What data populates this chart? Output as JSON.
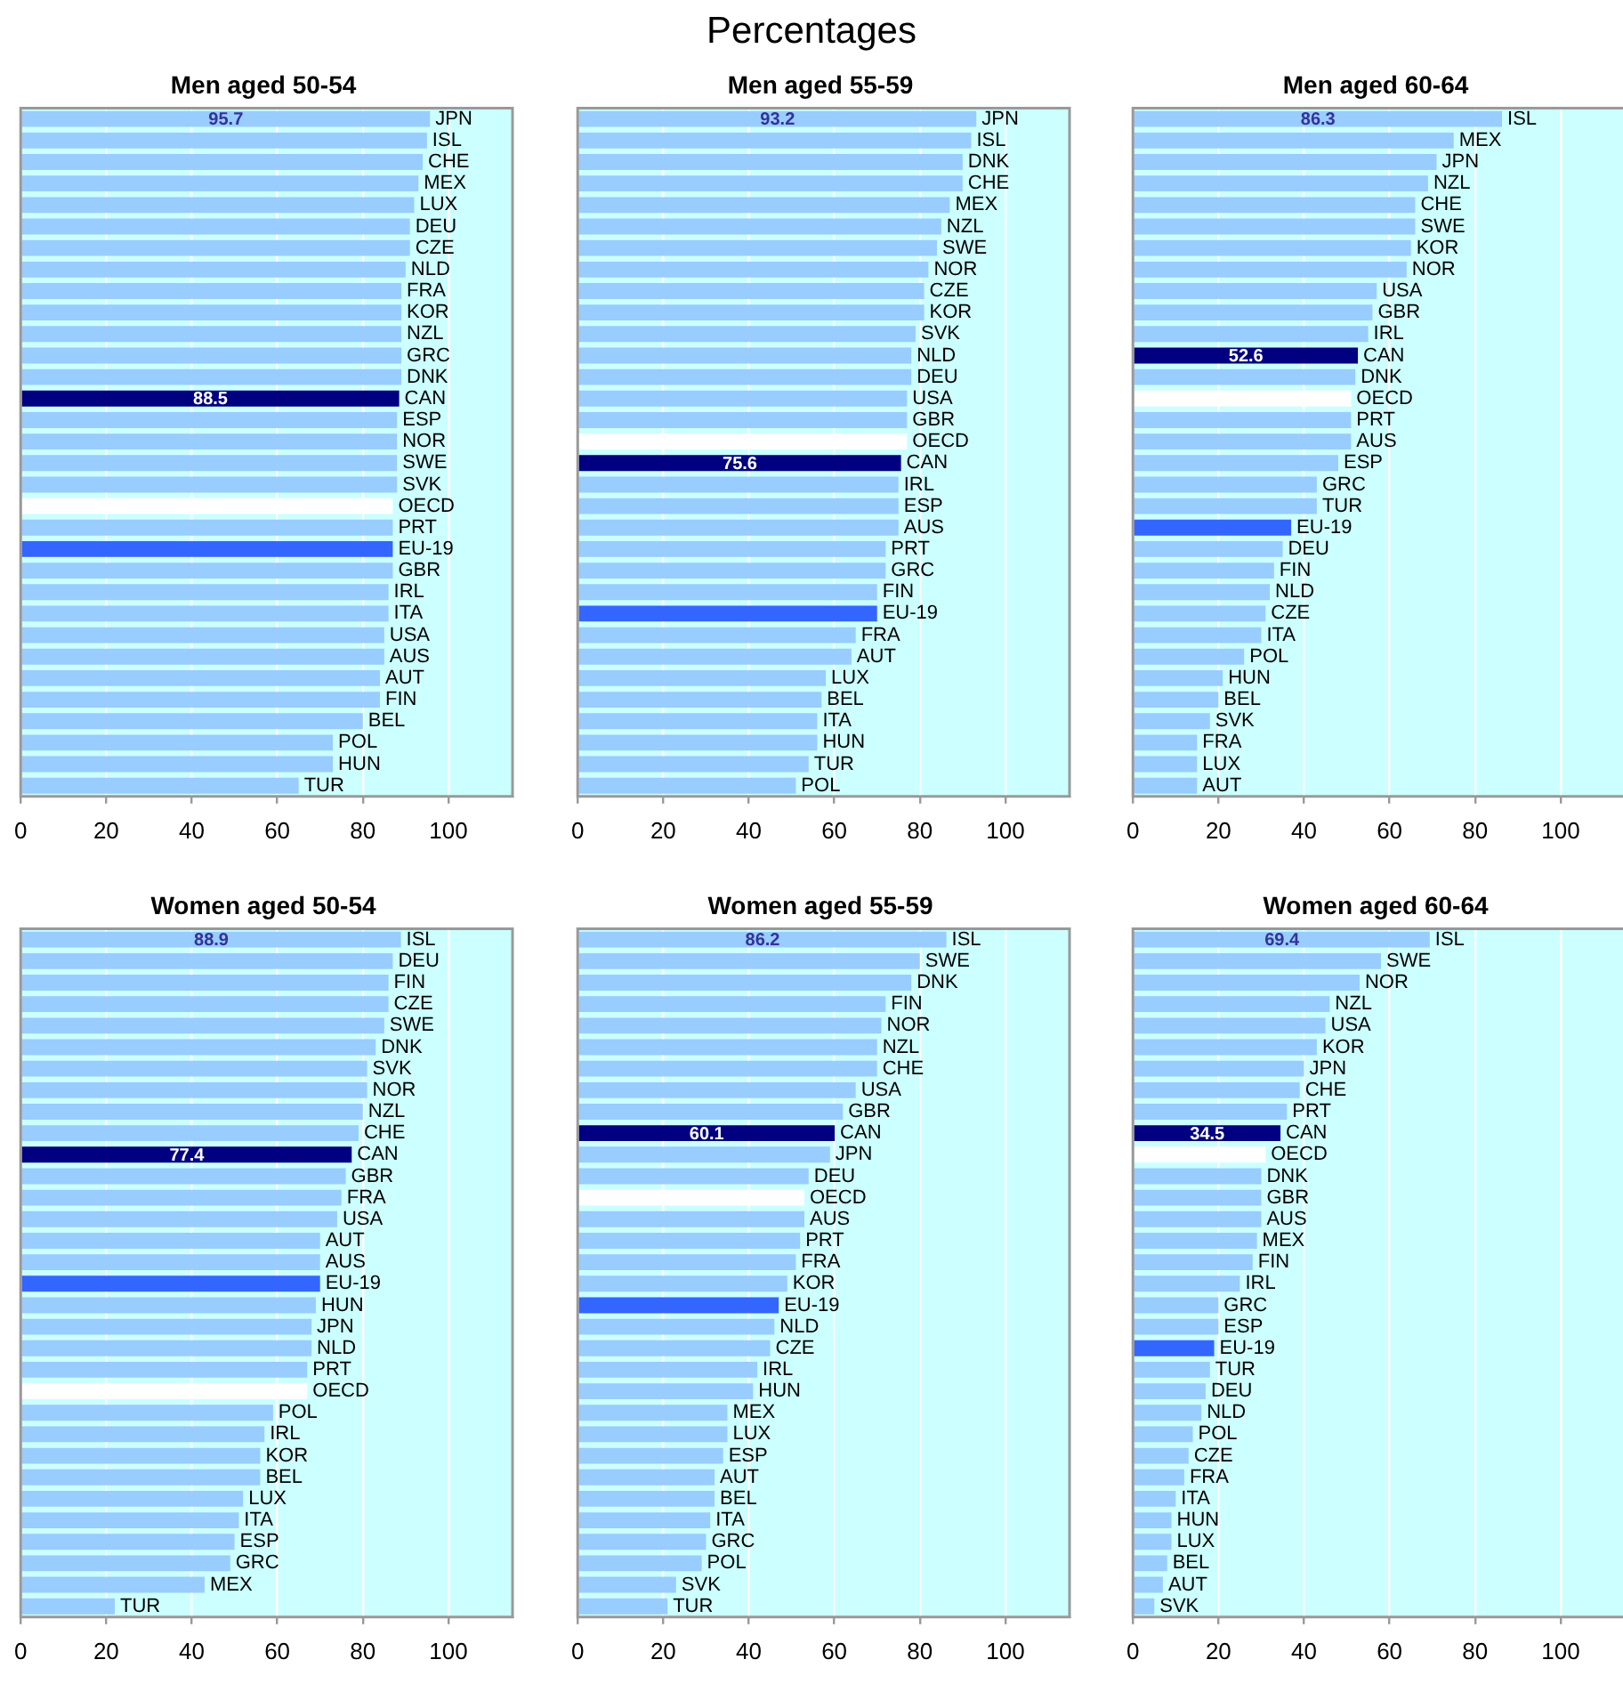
{
  "chart_data": [
    {
      "type": "bar",
      "orientation": "horizontal",
      "title": "Men aged 50-54",
      "bands": [
        {
          "axis": "x",
          "from": 0,
          "to": 115,
          "color": "#ccffff"
        }
      ],
      "annotations": [
        "Percentages"
      ],
      "grid": "x",
      "xlim": [
        0,
        115
      ],
      "xticks": [
        0,
        20,
        40,
        60,
        80,
        100
      ],
      "categories": [
        "JPN",
        "ISL",
        "CHE",
        "MEX",
        "LUX",
        "DEU",
        "CZE",
        "NLD",
        "FRA",
        "KOR",
        "NZL",
        "GRC",
        "DNK",
        "CAN",
        "ESP",
        "NOR",
        "SWE",
        "SVK",
        "OECD",
        "PRT",
        "EU-19",
        "GBR",
        "IRL",
        "ITA",
        "USA",
        "AUS",
        "AUT",
        "FIN",
        "BEL",
        "POL",
        "HUN",
        "TUR"
      ],
      "values": [
        95.7,
        95,
        94,
        93,
        92,
        91,
        91,
        90,
        89,
        89,
        89,
        89,
        89,
        88.5,
        88,
        88,
        88,
        88,
        87,
        87,
        87,
        87,
        86,
        86,
        85,
        85,
        84,
        84,
        80,
        73,
        73,
        65
      ],
      "colors": [
        "#99ccff",
        "#99ccff",
        "#99ccff",
        "#99ccff",
        "#99ccff",
        "#99ccff",
        "#99ccff",
        "#99ccff",
        "#99ccff",
        "#99ccff",
        "#99ccff",
        "#99ccff",
        "#99ccff",
        "#000080",
        "#99ccff",
        "#99ccff",
        "#99ccff",
        "#99ccff",
        "#ffffff",
        "#99ccff",
        "#3366ff",
        "#99ccff",
        "#99ccff",
        "#99ccff",
        "#99ccff",
        "#99ccff",
        "#99ccff",
        "#99ccff",
        "#99ccff",
        "#99ccff",
        "#99ccff",
        "#99ccff"
      ],
      "value_labels": [
        "95.7",
        null,
        null,
        null,
        null,
        null,
        null,
        null,
        null,
        null,
        null,
        null,
        null,
        "88.5",
        null,
        null,
        null,
        null,
        null,
        null,
        null,
        null,
        null,
        null,
        null,
        null,
        null,
        null,
        null,
        null,
        null,
        null
      ]
    },
    {
      "type": "bar",
      "orientation": "horizontal",
      "title": "Men aged 55-59",
      "bands": [
        {
          "axis": "x",
          "from": 0,
          "to": 115,
          "color": "#ccffff"
        }
      ],
      "grid": "x",
      "xlim": [
        0,
        115
      ],
      "xticks": [
        0,
        20,
        40,
        60,
        80,
        100
      ],
      "categories": [
        "JPN",
        "ISL",
        "DNK",
        "CHE",
        "MEX",
        "NZL",
        "SWE",
        "NOR",
        "CZE",
        "KOR",
        "SVK",
        "NLD",
        "DEU",
        "USA",
        "GBR",
        "OECD",
        "CAN",
        "IRL",
        "ESP",
        "AUS",
        "PRT",
        "GRC",
        "FIN",
        "EU-19",
        "FRA",
        "AUT",
        "LUX",
        "BEL",
        "ITA",
        "HUN",
        "TUR",
        "POL"
      ],
      "values": [
        93.2,
        92,
        90,
        90,
        87,
        85,
        84,
        82,
        81,
        81,
        79,
        78,
        78,
        77,
        77,
        77,
        75.6,
        75,
        75,
        75,
        72,
        72,
        70,
        70,
        65,
        64,
        58,
        57,
        56,
        56,
        54,
        51
      ],
      "colors": [
        "#99ccff",
        "#99ccff",
        "#99ccff",
        "#99ccff",
        "#99ccff",
        "#99ccff",
        "#99ccff",
        "#99ccff",
        "#99ccff",
        "#99ccff",
        "#99ccff",
        "#99ccff",
        "#99ccff",
        "#99ccff",
        "#99ccff",
        "#ffffff",
        "#000080",
        "#99ccff",
        "#99ccff",
        "#99ccff",
        "#99ccff",
        "#99ccff",
        "#99ccff",
        "#3366ff",
        "#99ccff",
        "#99ccff",
        "#99ccff",
        "#99ccff",
        "#99ccff",
        "#99ccff",
        "#99ccff",
        "#99ccff"
      ],
      "value_labels": [
        "93.2",
        null,
        null,
        null,
        null,
        null,
        null,
        null,
        null,
        null,
        null,
        null,
        null,
        null,
        null,
        null,
        "75.6",
        null,
        null,
        null,
        null,
        null,
        null,
        null,
        null,
        null,
        null,
        null,
        null,
        null,
        null,
        null
      ]
    },
    {
      "type": "bar",
      "orientation": "horizontal",
      "title": "Men aged 60-64",
      "bands": [
        {
          "axis": "x",
          "from": 0,
          "to": 115,
          "color": "#ccffff"
        }
      ],
      "grid": "x",
      "xlim": [
        0,
        115
      ],
      "xticks": [
        0,
        20,
        40,
        60,
        80,
        100
      ],
      "categories": [
        "ISL",
        "MEX",
        "JPN",
        "NZL",
        "CHE",
        "SWE",
        "KOR",
        "NOR",
        "USA",
        "GBR",
        "IRL",
        "CAN",
        "DNK",
        "OECD",
        "PRT",
        "AUS",
        "ESP",
        "GRC",
        "TUR",
        "EU-19",
        "DEU",
        "FIN",
        "NLD",
        "CZE",
        "ITA",
        "POL",
        "HUN",
        "BEL",
        "SVK",
        "FRA",
        "LUX",
        "AUT"
      ],
      "values": [
        86.3,
        75,
        71,
        69,
        66,
        66,
        65,
        64,
        57,
        56,
        55,
        52.6,
        52,
        51,
        51,
        51,
        48,
        43,
        43,
        37,
        35,
        33,
        32,
        31,
        30,
        26,
        21,
        20,
        18,
        15,
        15,
        15
      ],
      "colors": [
        "#99ccff",
        "#99ccff",
        "#99ccff",
        "#99ccff",
        "#99ccff",
        "#99ccff",
        "#99ccff",
        "#99ccff",
        "#99ccff",
        "#99ccff",
        "#99ccff",
        "#000080",
        "#99ccff",
        "#ffffff",
        "#99ccff",
        "#99ccff",
        "#99ccff",
        "#99ccff",
        "#99ccff",
        "#3366ff",
        "#99ccff",
        "#99ccff",
        "#99ccff",
        "#99ccff",
        "#99ccff",
        "#99ccff",
        "#99ccff",
        "#99ccff",
        "#99ccff",
        "#99ccff",
        "#99ccff",
        "#99ccff"
      ],
      "value_labels": [
        "86.3",
        null,
        null,
        null,
        null,
        null,
        null,
        null,
        null,
        null,
        null,
        "52.6",
        null,
        null,
        null,
        null,
        null,
        null,
        null,
        null,
        null,
        null,
        null,
        null,
        null,
        null,
        null,
        null,
        null,
        null,
        null,
        null
      ]
    },
    {
      "type": "bar",
      "orientation": "horizontal",
      "title": "Women aged 50-54",
      "bands": [
        {
          "axis": "x",
          "from": 0,
          "to": 115,
          "color": "#ccffff"
        }
      ],
      "grid": "x",
      "xlim": [
        0,
        115
      ],
      "xticks": [
        0,
        20,
        40,
        60,
        80,
        100
      ],
      "categories": [
        "ISL",
        "DEU",
        "FIN",
        "CZE",
        "SWE",
        "DNK",
        "SVK",
        "NOR",
        "NZL",
        "CHE",
        "CAN",
        "GBR",
        "FRA",
        "USA",
        "AUT",
        "AUS",
        "EU-19",
        "HUN",
        "JPN",
        "NLD",
        "PRT",
        "OECD",
        "POL",
        "IRL",
        "KOR",
        "BEL",
        "LUX",
        "ITA",
        "ESP",
        "GRC",
        "MEX",
        "TUR"
      ],
      "values": [
        88.9,
        87,
        86,
        86,
        85,
        83,
        81,
        81,
        80,
        79,
        77.4,
        76,
        75,
        74,
        70,
        70,
        70,
        69,
        68,
        68,
        67,
        67,
        59,
        57,
        56,
        56,
        52,
        51,
        50,
        49,
        43,
        22
      ],
      "colors": [
        "#99ccff",
        "#99ccff",
        "#99ccff",
        "#99ccff",
        "#99ccff",
        "#99ccff",
        "#99ccff",
        "#99ccff",
        "#99ccff",
        "#99ccff",
        "#000080",
        "#99ccff",
        "#99ccff",
        "#99ccff",
        "#99ccff",
        "#99ccff",
        "#3366ff",
        "#99ccff",
        "#99ccff",
        "#99ccff",
        "#99ccff",
        "#ffffff",
        "#99ccff",
        "#99ccff",
        "#99ccff",
        "#99ccff",
        "#99ccff",
        "#99ccff",
        "#99ccff",
        "#99ccff",
        "#99ccff",
        "#99ccff"
      ],
      "value_labels": [
        "88.9",
        null,
        null,
        null,
        null,
        null,
        null,
        null,
        null,
        null,
        "77.4",
        null,
        null,
        null,
        null,
        null,
        null,
        null,
        null,
        null,
        null,
        null,
        null,
        null,
        null,
        null,
        null,
        null,
        null,
        null,
        null,
        null
      ]
    },
    {
      "type": "bar",
      "orientation": "horizontal",
      "title": "Women aged 55-59",
      "bands": [
        {
          "axis": "x",
          "from": 0,
          "to": 115,
          "color": "#ccffff"
        }
      ],
      "grid": "x",
      "xlim": [
        0,
        115
      ],
      "xticks": [
        0,
        20,
        40,
        60,
        80,
        100
      ],
      "categories": [
        "ISL",
        "SWE",
        "DNK",
        "FIN",
        "NOR",
        "NZL",
        "CHE",
        "USA",
        "GBR",
        "CAN",
        "JPN",
        "DEU",
        "OECD",
        "AUS",
        "PRT",
        "FRA",
        "KOR",
        "EU-19",
        "NLD",
        "CZE",
        "IRL",
        "HUN",
        "MEX",
        "LUX",
        "ESP",
        "AUT",
        "BEL",
        "ITA",
        "GRC",
        "POL",
        "SVK",
        "TUR"
      ],
      "values": [
        86.2,
        80,
        78,
        72,
        71,
        70,
        70,
        65,
        62,
        60.1,
        59,
        54,
        53,
        53,
        52,
        51,
        49,
        47,
        46,
        45,
        42,
        41,
        35,
        35,
        34,
        32,
        32,
        31,
        30,
        29,
        23,
        21
      ],
      "colors": [
        "#99ccff",
        "#99ccff",
        "#99ccff",
        "#99ccff",
        "#99ccff",
        "#99ccff",
        "#99ccff",
        "#99ccff",
        "#99ccff",
        "#000080",
        "#99ccff",
        "#99ccff",
        "#ffffff",
        "#99ccff",
        "#99ccff",
        "#99ccff",
        "#99ccff",
        "#3366ff",
        "#99ccff",
        "#99ccff",
        "#99ccff",
        "#99ccff",
        "#99ccff",
        "#99ccff",
        "#99ccff",
        "#99ccff",
        "#99ccff",
        "#99ccff",
        "#99ccff",
        "#99ccff",
        "#99ccff",
        "#99ccff"
      ],
      "value_labels": [
        "86.2",
        null,
        null,
        null,
        null,
        null,
        null,
        null,
        null,
        "60.1",
        null,
        null,
        null,
        null,
        null,
        null,
        null,
        null,
        null,
        null,
        null,
        null,
        null,
        null,
        null,
        null,
        null,
        null,
        null,
        null,
        null,
        null
      ]
    },
    {
      "type": "bar",
      "orientation": "horizontal",
      "title": "Women aged 60-64",
      "bands": [
        {
          "axis": "x",
          "from": 0,
          "to": 115,
          "color": "#ccffff"
        }
      ],
      "grid": "x",
      "xlim": [
        0,
        115
      ],
      "xticks": [
        0,
        20,
        40,
        60,
        80,
        100
      ],
      "categories": [
        "ISL",
        "SWE",
        "NOR",
        "NZL",
        "USA",
        "KOR",
        "JPN",
        "CHE",
        "PRT",
        "CAN",
        "OECD",
        "DNK",
        "GBR",
        "AUS",
        "MEX",
        "FIN",
        "IRL",
        "GRC",
        "ESP",
        "EU-19",
        "TUR",
        "DEU",
        "NLD",
        "POL",
        "CZE",
        "FRA",
        "ITA",
        "HUN",
        "LUX",
        "BEL",
        "AUT",
        "SVK"
      ],
      "values": [
        69.4,
        58,
        53,
        46,
        45,
        43,
        40,
        39,
        36,
        34.5,
        31,
        30,
        30,
        30,
        29,
        28,
        25,
        20,
        20,
        19,
        18,
        17,
        16,
        14,
        13,
        12,
        10,
        9,
        9,
        8,
        7,
        5
      ],
      "colors": [
        "#99ccff",
        "#99ccff",
        "#99ccff",
        "#99ccff",
        "#99ccff",
        "#99ccff",
        "#99ccff",
        "#99ccff",
        "#99ccff",
        "#000080",
        "#ffffff",
        "#99ccff",
        "#99ccff",
        "#99ccff",
        "#99ccff",
        "#99ccff",
        "#99ccff",
        "#99ccff",
        "#99ccff",
        "#3366ff",
        "#99ccff",
        "#99ccff",
        "#99ccff",
        "#99ccff",
        "#99ccff",
        "#99ccff",
        "#99ccff",
        "#99ccff",
        "#99ccff",
        "#99ccff",
        "#99ccff",
        "#99ccff"
      ],
      "value_labels": [
        "69.4",
        null,
        null,
        null,
        null,
        null,
        null,
        null,
        null,
        "34.5",
        null,
        null,
        null,
        null,
        null,
        null,
        null,
        null,
        null,
        null,
        null,
        null,
        null,
        null,
        null,
        null,
        null,
        null,
        null,
        null,
        null,
        null
      ]
    }
  ]
}
